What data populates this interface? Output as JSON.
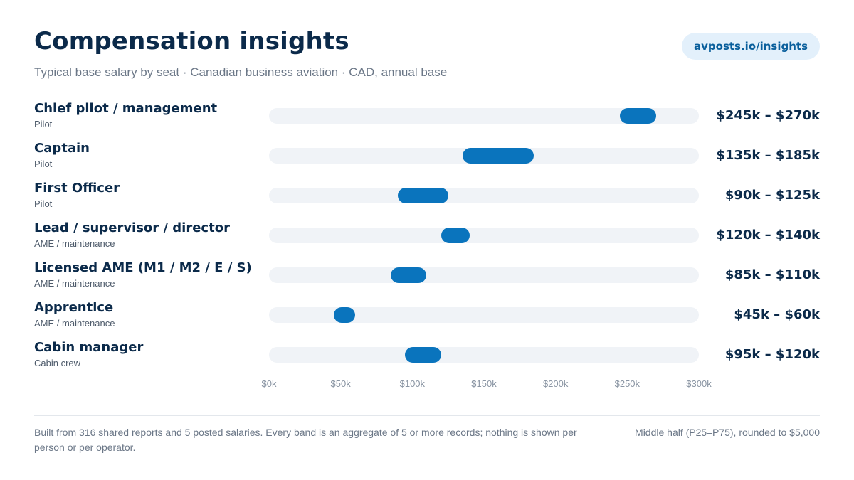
{
  "header": {
    "title": "Compensation insights",
    "subtitle": "Typical base salary by seat · Canadian business aviation · CAD, annual base",
    "link_label": "avposts.io/insights"
  },
  "colors": {
    "band": "#0a74bd",
    "track": "#f0f3f7",
    "title": "#0b2a4a",
    "pill_bg": "#e3f0fb"
  },
  "chart_data": {
    "type": "bar",
    "orientation": "horizontal-range",
    "xlim": [
      0,
      300000
    ],
    "x_ticks": [
      0,
      50000,
      100000,
      150000,
      200000,
      250000,
      300000
    ],
    "x_tick_labels": [
      "$0k",
      "$50k",
      "$100k",
      "$150k",
      "$200k",
      "$250k",
      "$300k"
    ],
    "rows": [
      {
        "label": "Chief pilot / management",
        "category": "Pilot",
        "low": 245000,
        "high": 270000,
        "range_label": "$245k – $270k"
      },
      {
        "label": "Captain",
        "category": "Pilot",
        "low": 135000,
        "high": 185000,
        "range_label": "$135k – $185k"
      },
      {
        "label": "First Officer",
        "category": "Pilot",
        "low": 90000,
        "high": 125000,
        "range_label": "$90k – $125k"
      },
      {
        "label": "Lead / supervisor / director",
        "category": "AME / maintenance",
        "low": 120000,
        "high": 140000,
        "range_label": "$120k – $140k"
      },
      {
        "label": "Licensed AME (M1 / M2 / E / S)",
        "category": "AME / maintenance",
        "low": 85000,
        "high": 110000,
        "range_label": "$85k – $110k"
      },
      {
        "label": "Apprentice",
        "category": "AME / maintenance",
        "low": 45000,
        "high": 60000,
        "range_label": "$45k – $60k"
      },
      {
        "label": "Cabin manager",
        "category": "Cabin crew",
        "low": 95000,
        "high": 120000,
        "range_label": "$95k – $120k"
      }
    ]
  },
  "footer": {
    "note": "Built from 316 shared reports and 5 posted salaries. Every band is an aggregate of 5 or more records; nothing is shown per person or per operator.",
    "method": "Middle half (P25–P75), rounded to $5,000"
  }
}
